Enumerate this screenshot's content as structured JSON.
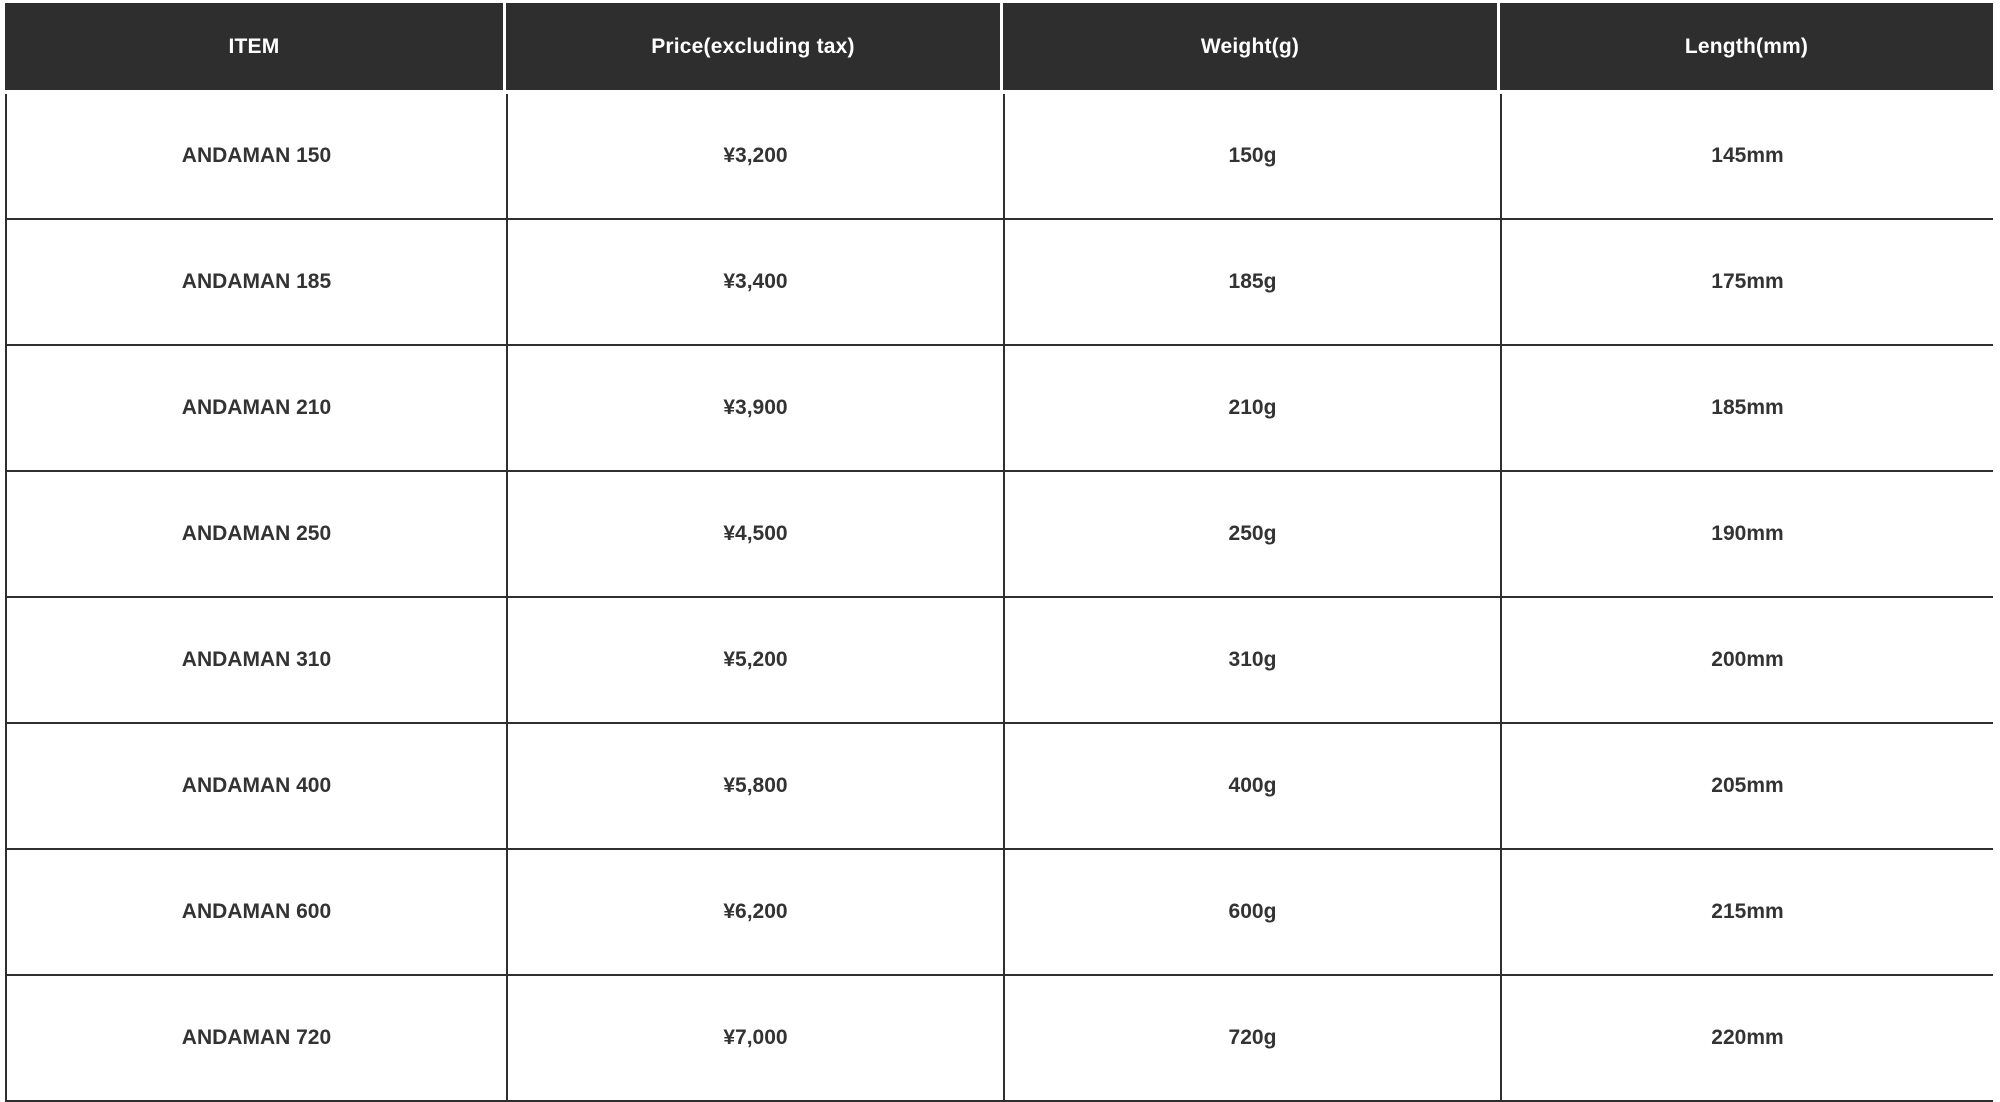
{
  "table": {
    "columns": [
      {
        "key": "item",
        "label": "ITEM"
      },
      {
        "key": "price",
        "label": "Price(excluding tax)"
      },
      {
        "key": "weight",
        "label": "Weight(g)"
      },
      {
        "key": "length",
        "label": "Length(mm)"
      }
    ],
    "rows": [
      {
        "item": "ANDAMAN 150",
        "price": "¥3,200",
        "weight": "150g",
        "length": "145mm"
      },
      {
        "item": "ANDAMAN 185",
        "price": "¥3,400",
        "weight": "185g",
        "length": "175mm"
      },
      {
        "item": "ANDAMAN 210",
        "price": "¥3,900",
        "weight": "210g",
        "length": "185mm"
      },
      {
        "item": "ANDAMAN 250",
        "price": "¥4,500",
        "weight": "250g",
        "length": "190mm"
      },
      {
        "item": "ANDAMAN 310",
        "price": "¥5,200",
        "weight": "310g",
        "length": "200mm"
      },
      {
        "item": "ANDAMAN 400",
        "price": "¥5,800",
        "weight": "400g",
        "length": "205mm"
      },
      {
        "item": "ANDAMAN 600",
        "price": "¥6,200",
        "weight": "600g",
        "length": "215mm"
      },
      {
        "item": "ANDAMAN 720",
        "price": "¥7,000",
        "weight": "720g",
        "length": "220mm"
      }
    ]
  },
  "colors": {
    "header_background": "#2e2e2e",
    "header_text": "#ffffff",
    "body_text": "#333333",
    "grid_border": "#2f2f2f",
    "background": "#ffffff"
  }
}
